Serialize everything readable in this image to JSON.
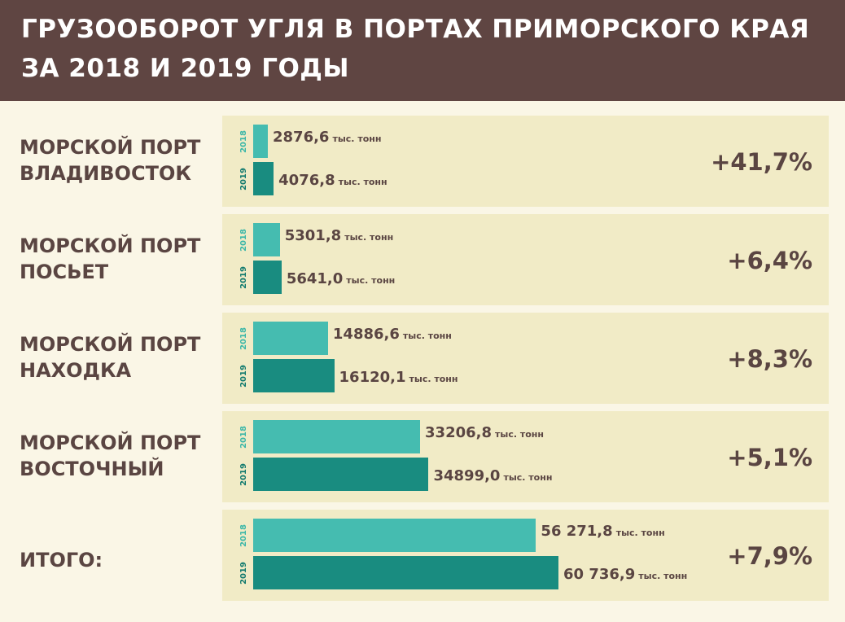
{
  "header": {
    "title_line1": "ГРУЗООБОРОТ УГЛЯ В ПОРТАХ ПРИМОРСКОГО КРАЯ",
    "title_line2": "ЗА 2018 И 2019 ГОДЫ"
  },
  "colors": {
    "header_bg": "#5f4542",
    "page_bg": "#faf6e6",
    "panel_bg": "#f1ebc6",
    "bar_2018": "#45bcb0",
    "bar_2019": "#198c80",
    "text": "#5a4542"
  },
  "chart_data": {
    "type": "bar",
    "orientation": "horizontal",
    "title": "ГРУЗООБОРОТ УГЛЯ В ПОРТАХ ПРИМОРСКОГО КРАЯ ЗА 2018 И 2019 ГОДЫ",
    "unit": "тыс. тонн",
    "categories": [
      {
        "line1": "МОРСКОЙ ПОРТ",
        "line2": "ВЛАДИВОСТОК"
      },
      {
        "line1": "МОРСКОЙ ПОРТ",
        "line2": "ПОСЬЕТ"
      },
      {
        "line1": "МОРСКОЙ ПОРТ",
        "line2": "НАХОДКА"
      },
      {
        "line1": "МОРСКОЙ ПОРТ",
        "line2": "ВОСТОЧНЫЙ"
      },
      {
        "line1": "",
        "line2": "ИТОГО:"
      }
    ],
    "series": [
      {
        "name": "2018",
        "values": [
          2876.6,
          5301.8,
          14886.6,
          33206.8,
          56271.8
        ],
        "labels": [
          "2876,6",
          "5301,8",
          "14886,6",
          "33206,8",
          "56 271,8"
        ]
      },
      {
        "name": "2019",
        "values": [
          4076.8,
          5641.0,
          16120.1,
          34899.0,
          60736.9
        ],
        "labels": [
          "4076,8",
          "5641,0",
          "16120,1",
          "34899,0",
          "60 736,9"
        ]
      }
    ],
    "changes": [
      "+41,7%",
      "+6,4%",
      "+8,3%",
      "+5,1%",
      "+7,9%"
    ]
  }
}
